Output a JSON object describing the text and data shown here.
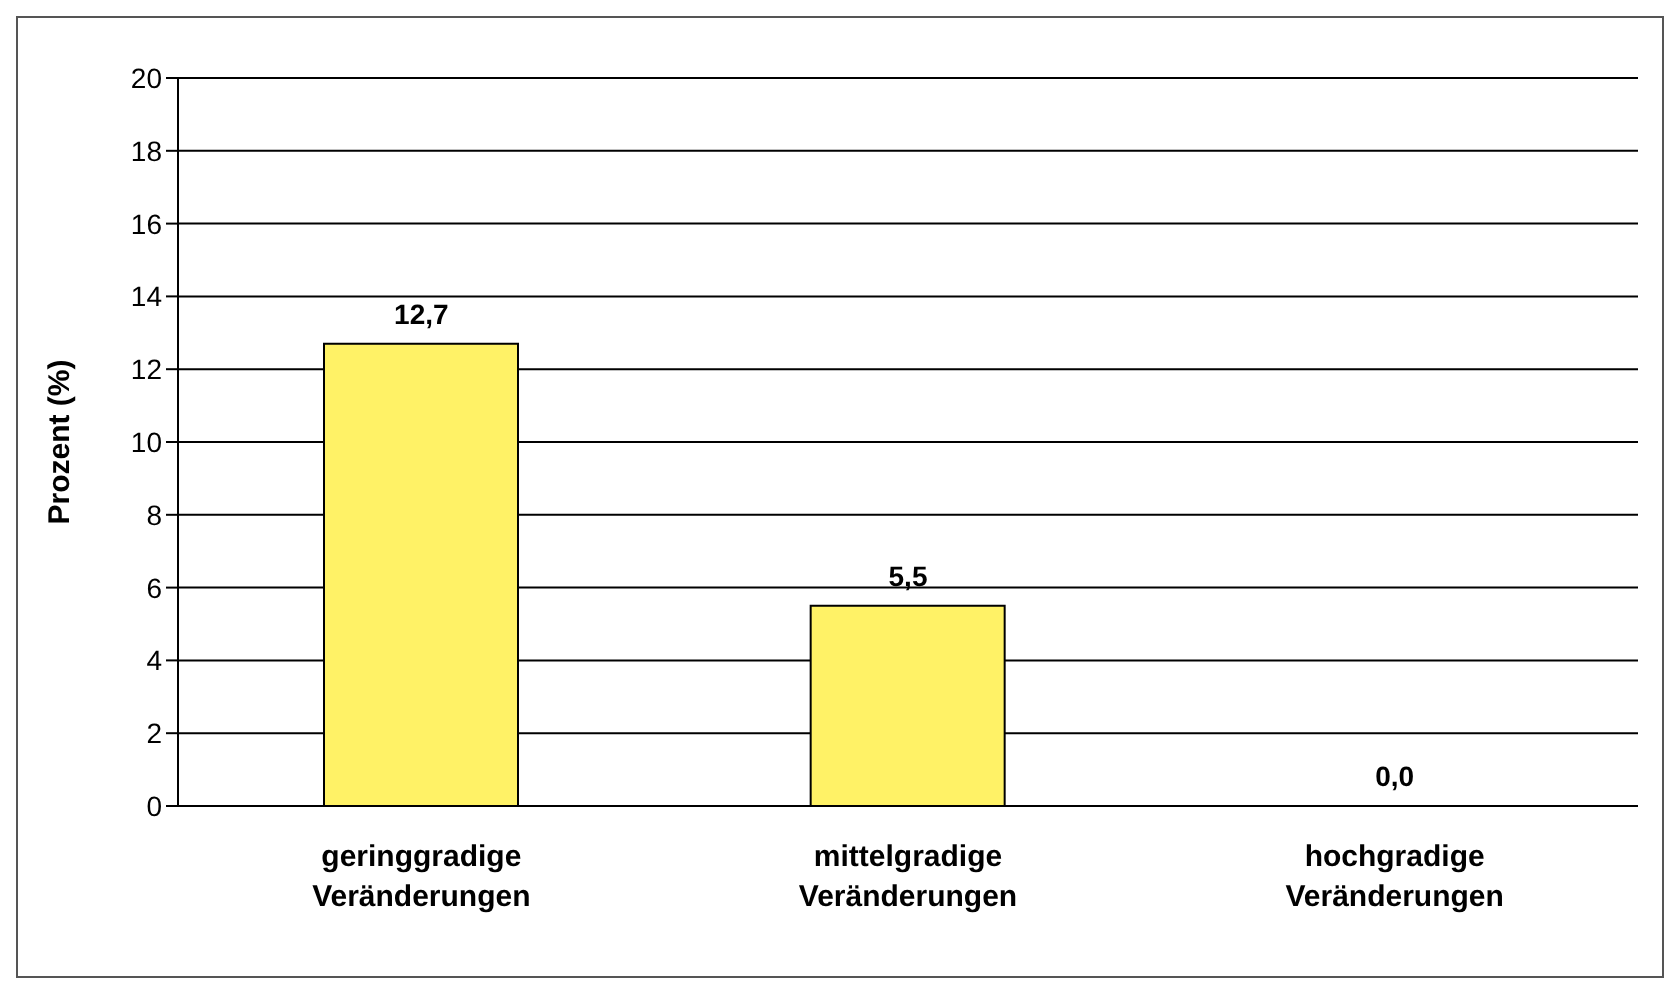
{
  "chart_data": {
    "type": "bar",
    "ylabel": "Prozent (%)",
    "categories": [
      "geringgradige Veränderungen",
      "mittelgradige Veränderungen",
      "hochgradige Veränderungen"
    ],
    "values": [
      12.7,
      5.5,
      0.0
    ],
    "value_labels": [
      "12,7",
      "5,5",
      "0,0"
    ],
    "color": "#fff266",
    "ylim": [
      0,
      20
    ],
    "yticks": [
      0,
      2,
      4,
      6,
      8,
      10,
      12,
      14,
      16,
      18,
      20
    ],
    "grid": "y"
  }
}
